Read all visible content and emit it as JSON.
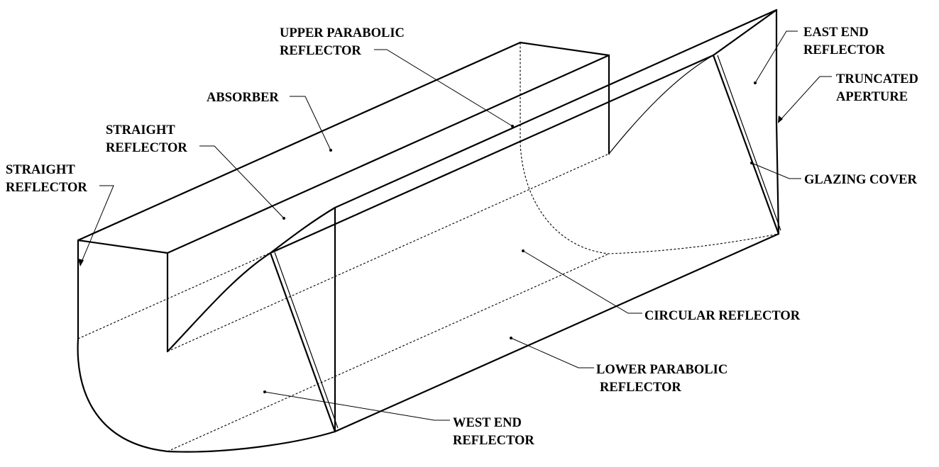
{
  "labels": {
    "upper_parabolic_reflector": [
      "UPPER PARABOLIC",
      "REFLECTOR"
    ],
    "absorber": [
      "ABSORBER"
    ],
    "straight_reflector_inner": [
      "STRAIGHT",
      "REFLECTOR"
    ],
    "straight_reflector_outer": [
      "STRAIGHT",
      "REFLECTOR"
    ],
    "east_end_reflector": [
      "EAST END",
      "REFLECTOR"
    ],
    "truncated_aperture": [
      "TRUNCATED",
      "APERTURE"
    ],
    "glazing_cover": [
      "GLAZING COVER"
    ],
    "circular_reflector": [
      "CIRCULAR REFLECTOR"
    ],
    "lower_parabolic_reflector": [
      "LOWER PARABOLIC",
      "REFLECTOR"
    ],
    "west_end_reflector": [
      "WEST END",
      "REFLECTOR"
    ]
  }
}
